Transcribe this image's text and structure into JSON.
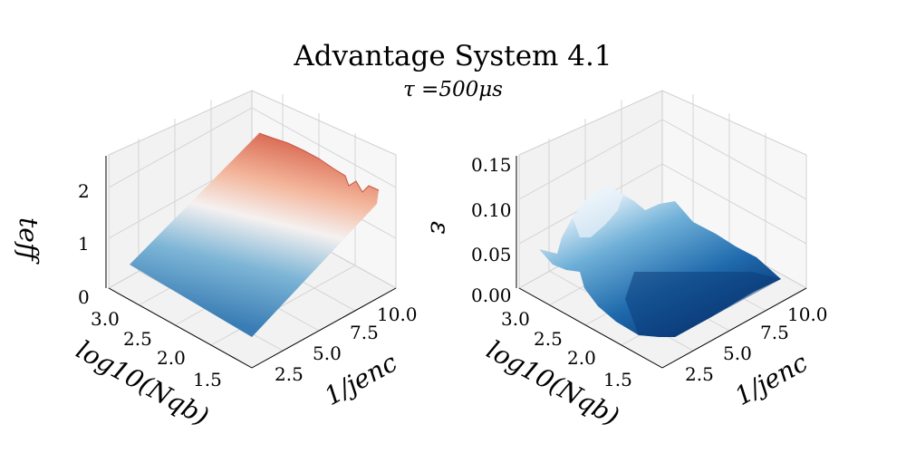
{
  "title": "Advantage System 4.1",
  "subtitle": "τ =500μs",
  "chart_data": [
    {
      "type": "surface3d",
      "colormap": "RdBu_r",
      "xlabel": "log10(Nqb)",
      "ylabel": "1/jenc",
      "zlabel": "teff",
      "x_ticks": [
        "3.0",
        "2.5",
        "2.0",
        "1.5"
      ],
      "y_ticks": [
        "2.5",
        "5.0",
        "7.5",
        "10.0"
      ],
      "z_ticks": [
        "0",
        "1",
        "2"
      ],
      "xlim": [
        1.2,
        3.2
      ],
      "ylim": [
        1,
        11
      ],
      "zlim": [
        0,
        2.5
      ],
      "surface": {
        "x_range": [
          1.3,
          3.0
        ],
        "y_range": [
          1.0,
          10.5
        ],
        "z_min": 0.45,
        "z_max": 2.5
      }
    },
    {
      "type": "surface3d",
      "colormap": "Blues_r",
      "xlabel": "log10(Nqb)",
      "ylabel": "1/jenc",
      "zlabel": "ε",
      "x_ticks": [
        "3.0",
        "2.5",
        "2.0",
        "1.5"
      ],
      "y_ticks": [
        "2.5",
        "5.0",
        "7.5",
        "10.0"
      ],
      "z_ticks": [
        "0.00",
        "0.05",
        "0.10",
        "0.15"
      ],
      "xlim": [
        1.2,
        3.2
      ],
      "ylim": [
        1,
        11
      ],
      "zlim": [
        0,
        0.15
      ],
      "surface": {
        "x_range": [
          1.3,
          3.0
        ],
        "y_range": [
          1.0,
          10.5
        ],
        "z_min": 0.0,
        "z_max": 0.12
      }
    }
  ]
}
